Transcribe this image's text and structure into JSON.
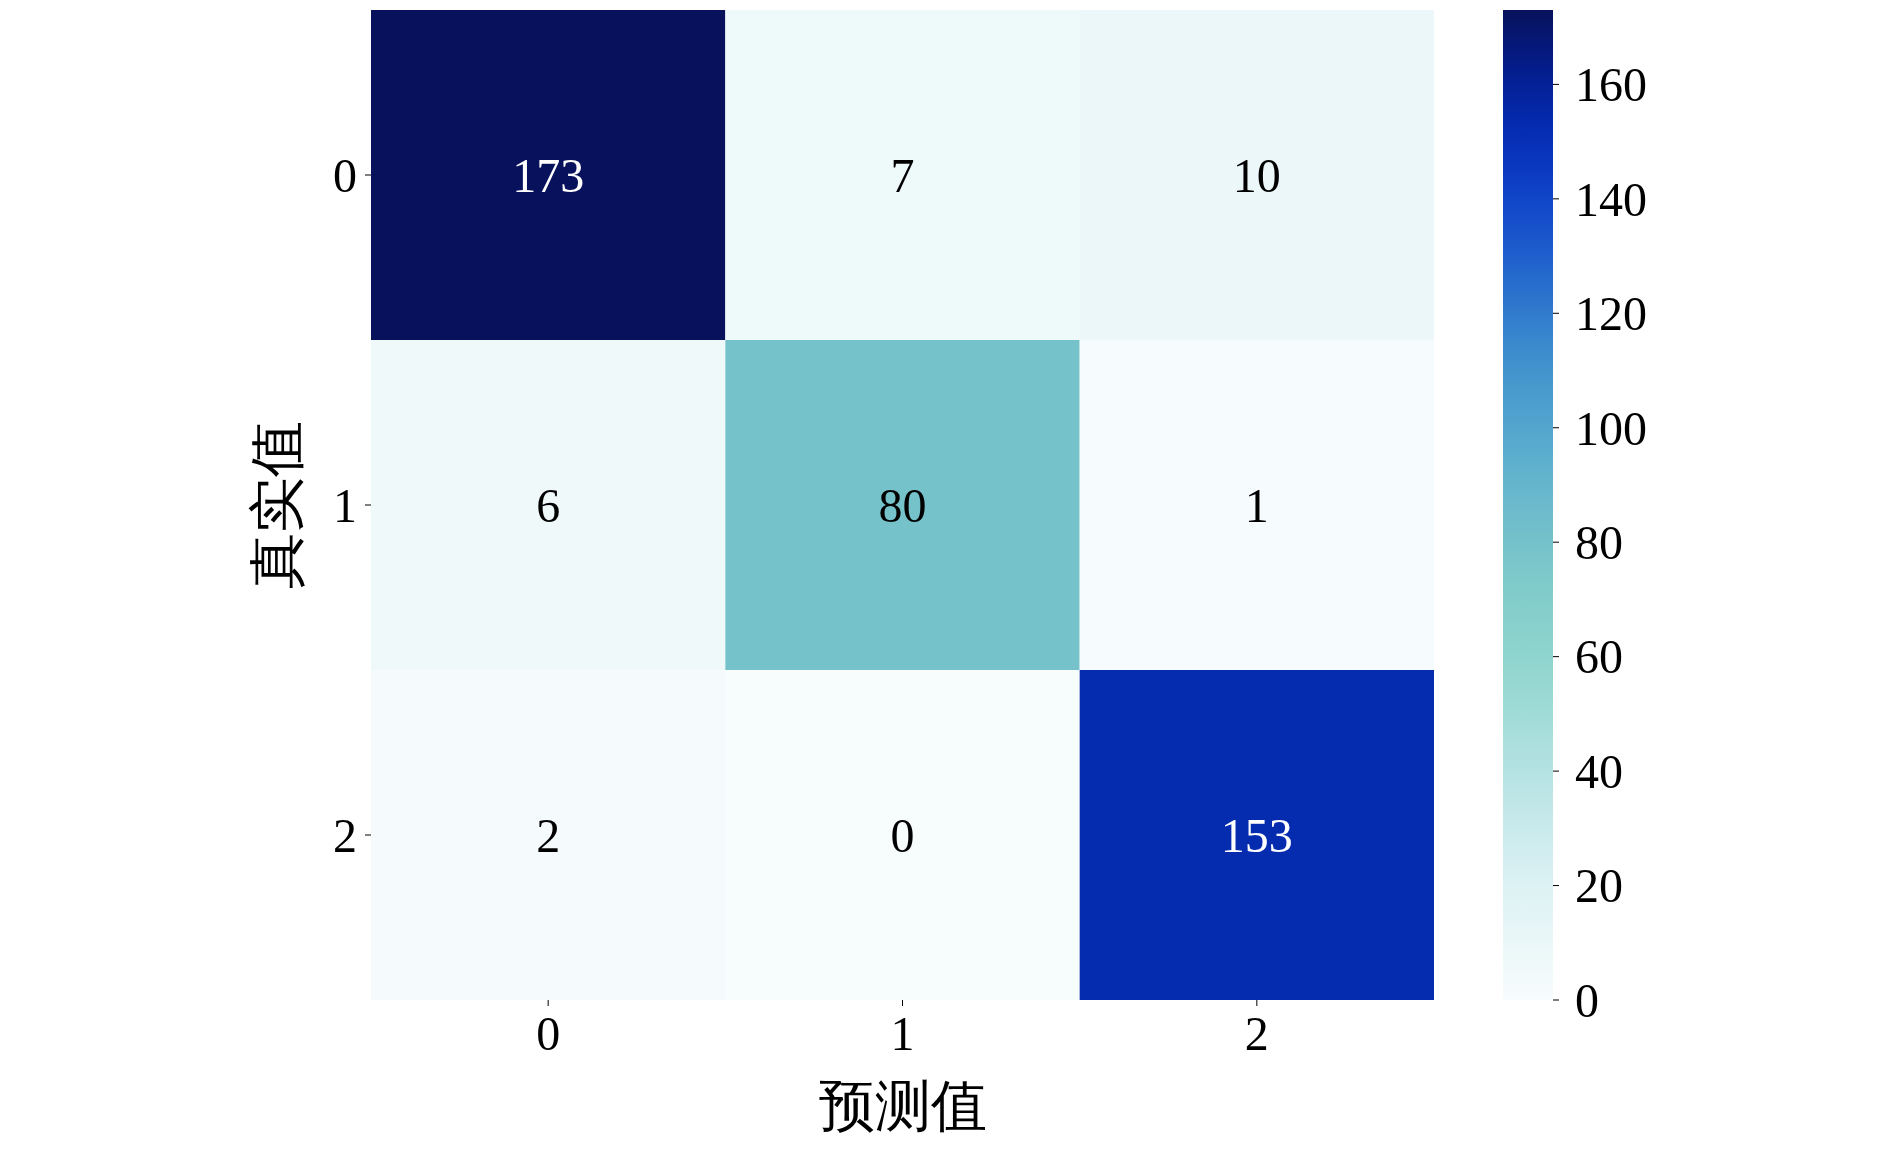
{
  "chart_data": {
    "type": "heatmap",
    "xlabel": "预测值",
    "ylabel": "真实值",
    "categories": [
      "0",
      "1",
      "2"
    ],
    "y_categories": [
      "0",
      "1",
      "2"
    ],
    "cells": [
      [
        173,
        7,
        10
      ],
      [
        6,
        80,
        1
      ],
      [
        2,
        0,
        153
      ]
    ],
    "data_labels": true,
    "clim": [
      0,
      173
    ],
    "cticks": [
      0,
      20,
      40,
      60,
      80,
      100,
      120,
      140,
      160
    ]
  }
}
